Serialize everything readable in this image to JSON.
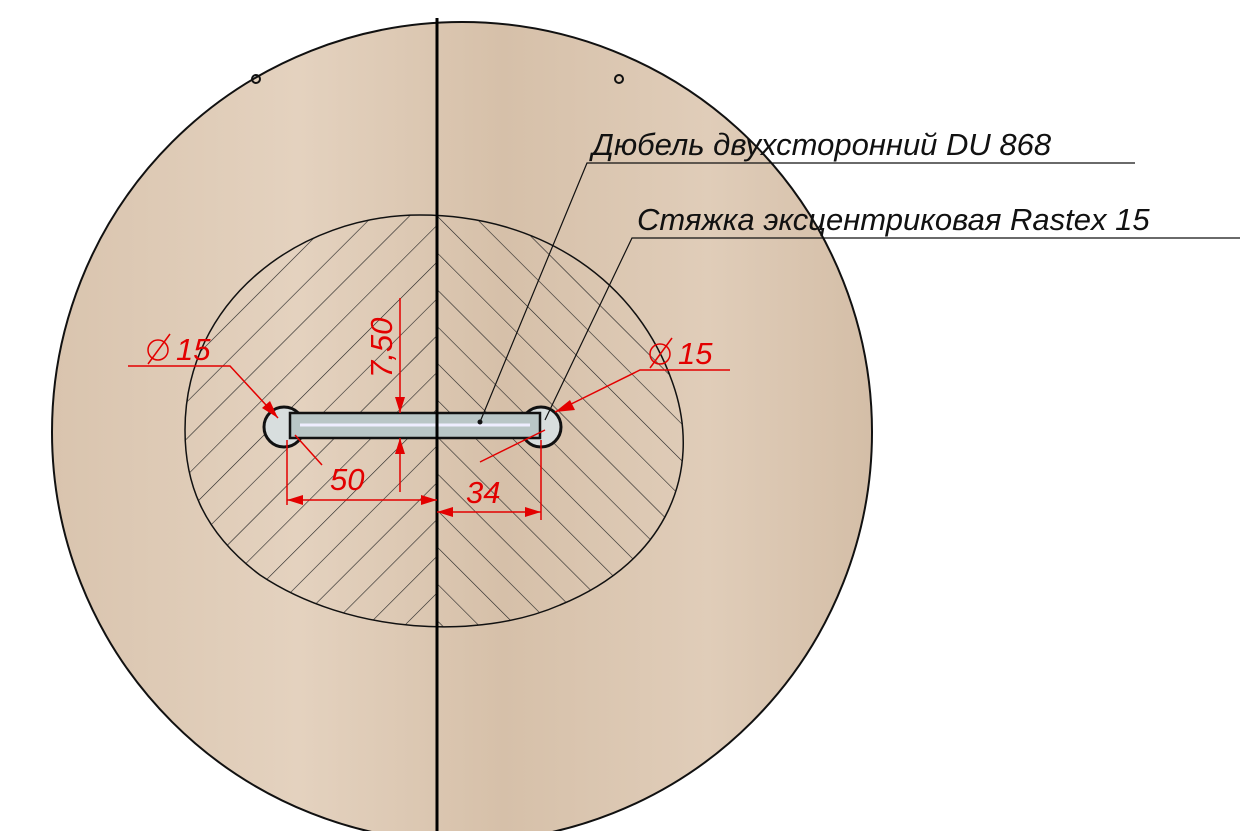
{
  "labels": [
    "Дюбель двухсторонний DU 868",
    "Стяжка эксцентриковая Rastex 15"
  ],
  "dimensions": {
    "diameter_left": "15",
    "diameter_right": "15",
    "offset": "7,50",
    "left_distance": "50",
    "right_distance": "34"
  }
}
